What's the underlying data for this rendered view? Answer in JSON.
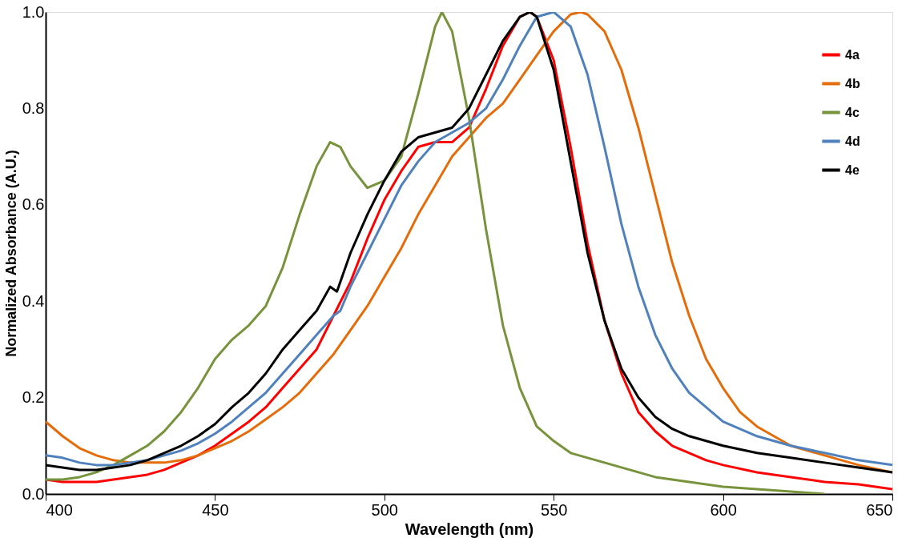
{
  "chart_data": {
    "type": "line",
    "xlabel": "Wavelength (nm)",
    "ylabel": "Normalized Absorbance (A.U.)",
    "xlim": [
      400,
      650
    ],
    "xticks": [
      400,
      450,
      500,
      550,
      600,
      650
    ],
    "ylim": [
      0,
      1.0
    ],
    "yticks": [
      {
        "value": 0,
        "label": "0.0"
      },
      {
        "value": 0.2,
        "label": "0.2"
      },
      {
        "value": 0.4,
        "label": "0.4"
      },
      {
        "value": 0.6,
        "label": "0.6"
      },
      {
        "value": 0.8,
        "label": "0.8"
      },
      {
        "value": 1.0,
        "label": "1.0"
      }
    ],
    "grid": false,
    "legend": "top right",
    "marker": "none",
    "line_style": "solid",
    "series": [
      {
        "name": "4a",
        "color": "#ff0000",
        "x": [
          400,
          405,
          410,
          415,
          420,
          425,
          430,
          435,
          440,
          445,
          450,
          455,
          460,
          465,
          470,
          475,
          480,
          485,
          490,
          495,
          500,
          505,
          510,
          515,
          520,
          525,
          530,
          535,
          540,
          543,
          545,
          550,
          555,
          560,
          565,
          570,
          575,
          580,
          585,
          590,
          595,
          600,
          610,
          620,
          630,
          640,
          650
        ],
        "values": [
          0.03,
          0.025,
          0.025,
          0.025,
          0.03,
          0.035,
          0.04,
          0.05,
          0.065,
          0.08,
          0.1,
          0.125,
          0.15,
          0.18,
          0.22,
          0.26,
          0.3,
          0.37,
          0.44,
          0.53,
          0.61,
          0.67,
          0.72,
          0.73,
          0.73,
          0.76,
          0.84,
          0.93,
          0.99,
          1.0,
          0.99,
          0.9,
          0.72,
          0.52,
          0.36,
          0.25,
          0.17,
          0.13,
          0.1,
          0.085,
          0.07,
          0.06,
          0.045,
          0.035,
          0.025,
          0.02,
          0.01
        ]
      },
      {
        "name": "4b",
        "color": "#e46c0a",
        "x": [
          400,
          405,
          410,
          415,
          420,
          425,
          430,
          435,
          440,
          445,
          450,
          455,
          460,
          465,
          470,
          475,
          480,
          485,
          490,
          495,
          500,
          505,
          510,
          515,
          520,
          525,
          530,
          535,
          540,
          545,
          550,
          555,
          558,
          560,
          565,
          570,
          575,
          580,
          585,
          590,
          595,
          600,
          605,
          610,
          620,
          630,
          640,
          650
        ],
        "values": [
          0.15,
          0.12,
          0.095,
          0.08,
          0.07,
          0.065,
          0.065,
          0.065,
          0.07,
          0.08,
          0.095,
          0.11,
          0.13,
          0.155,
          0.18,
          0.21,
          0.25,
          0.29,
          0.34,
          0.39,
          0.45,
          0.51,
          0.58,
          0.64,
          0.7,
          0.74,
          0.78,
          0.81,
          0.86,
          0.91,
          0.96,
          0.995,
          1.0,
          0.995,
          0.96,
          0.88,
          0.76,
          0.62,
          0.48,
          0.37,
          0.28,
          0.22,
          0.17,
          0.14,
          0.1,
          0.08,
          0.06,
          0.045
        ]
      },
      {
        "name": "4c",
        "color": "#77933c",
        "x": [
          400,
          405,
          410,
          415,
          420,
          425,
          430,
          435,
          440,
          445,
          450,
          455,
          460,
          465,
          470,
          475,
          480,
          484,
          487,
          490,
          495,
          500,
          505,
          510,
          515,
          517,
          520,
          525,
          530,
          535,
          540,
          545,
          550,
          555,
          560,
          570,
          580,
          590,
          600,
          610,
          620,
          630
        ],
        "values": [
          0.03,
          0.03,
          0.035,
          0.045,
          0.06,
          0.08,
          0.1,
          0.13,
          0.17,
          0.22,
          0.28,
          0.32,
          0.35,
          0.39,
          0.47,
          0.58,
          0.68,
          0.73,
          0.72,
          0.68,
          0.635,
          0.65,
          0.7,
          0.83,
          0.97,
          1.0,
          0.96,
          0.78,
          0.55,
          0.35,
          0.22,
          0.14,
          0.11,
          0.085,
          0.075,
          0.055,
          0.035,
          0.025,
          0.015,
          0.01,
          0.005,
          0.0
        ]
      },
      {
        "name": "4d",
        "color": "#4f81bd",
        "x": [
          400,
          405,
          410,
          415,
          420,
          425,
          430,
          435,
          440,
          445,
          450,
          455,
          460,
          465,
          470,
          475,
          480,
          485,
          487,
          490,
          495,
          500,
          505,
          510,
          515,
          520,
          525,
          530,
          535,
          540,
          545,
          550,
          555,
          560,
          565,
          570,
          575,
          580,
          585,
          590,
          595,
          600,
          610,
          620,
          630,
          640,
          650
        ],
        "values": [
          0.08,
          0.075,
          0.065,
          0.06,
          0.06,
          0.065,
          0.07,
          0.08,
          0.09,
          0.105,
          0.125,
          0.15,
          0.18,
          0.21,
          0.25,
          0.29,
          0.33,
          0.37,
          0.38,
          0.43,
          0.5,
          0.57,
          0.64,
          0.69,
          0.73,
          0.75,
          0.77,
          0.8,
          0.86,
          0.93,
          0.99,
          1.0,
          0.97,
          0.87,
          0.72,
          0.56,
          0.43,
          0.33,
          0.26,
          0.21,
          0.18,
          0.15,
          0.12,
          0.1,
          0.085,
          0.07,
          0.06
        ]
      },
      {
        "name": "4e",
        "color": "#000000",
        "x": [
          400,
          405,
          410,
          415,
          420,
          425,
          430,
          435,
          440,
          445,
          450,
          455,
          460,
          465,
          470,
          475,
          480,
          484,
          486,
          490,
          495,
          500,
          505,
          510,
          515,
          520,
          525,
          530,
          535,
          540,
          543,
          545,
          550,
          555,
          560,
          565,
          570,
          575,
          580,
          585,
          590,
          600,
          610,
          620,
          630,
          640,
          650
        ],
        "values": [
          0.06,
          0.055,
          0.05,
          0.05,
          0.055,
          0.06,
          0.07,
          0.085,
          0.1,
          0.12,
          0.145,
          0.18,
          0.21,
          0.25,
          0.3,
          0.34,
          0.38,
          0.43,
          0.42,
          0.5,
          0.58,
          0.65,
          0.71,
          0.74,
          0.75,
          0.76,
          0.8,
          0.87,
          0.94,
          0.99,
          1.0,
          0.99,
          0.88,
          0.69,
          0.5,
          0.36,
          0.26,
          0.2,
          0.16,
          0.135,
          0.12,
          0.1,
          0.085,
          0.075,
          0.065,
          0.055,
          0.045
        ]
      }
    ]
  }
}
